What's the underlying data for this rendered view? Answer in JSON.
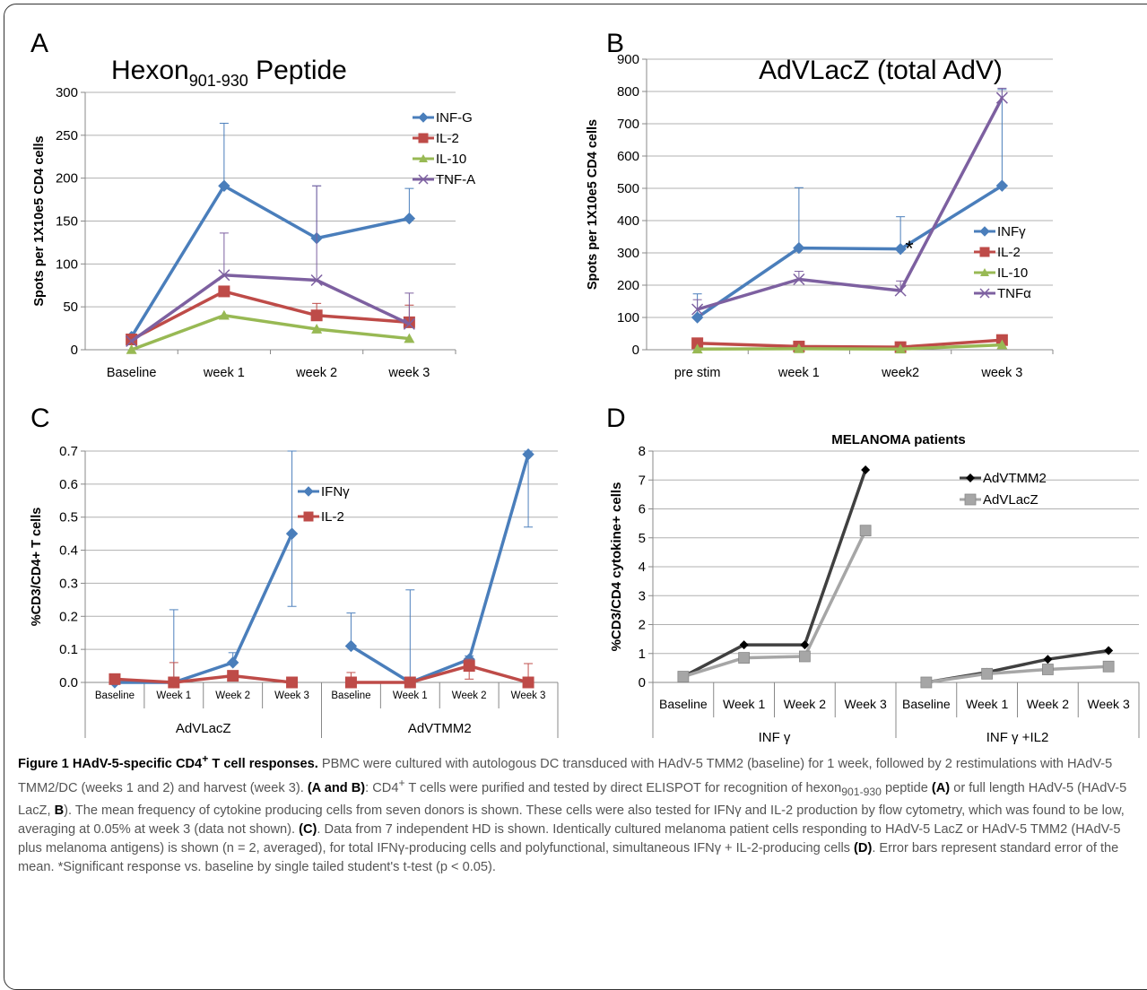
{
  "colors": {
    "blue": "#4a7ebb",
    "red": "#be4b48",
    "green": "#98b954",
    "purple": "#7d60a0",
    "dark": "#404040",
    "gray": "#a6a6a6",
    "err_blue": "#4f81bd",
    "err_red": "#c0504d"
  },
  "chart_data": [
    {
      "panel_label": "A",
      "type": "line",
      "title": "Hexon901-930 Peptide",
      "title_main": "Hexon",
      "title_sub": "901-930",
      "title_rest": " Peptide",
      "ylabel": "Spots per 1X10e5 CD4 cells",
      "xlabel": "",
      "ylim": [
        0,
        300
      ],
      "yticks": [
        "0",
        "50",
        "100",
        "150",
        "200",
        "250",
        "300"
      ],
      "categories": [
        "Baseline",
        "week 1",
        "week 2",
        "week 3"
      ],
      "grid": true,
      "legend_position": "top-right",
      "series": [
        {
          "name": "INF-G",
          "marker": "diamond",
          "values": [
            15,
            191,
            130,
            153
          ],
          "err": [
            0,
            73,
            61,
            35
          ]
        },
        {
          "name": "IL-2",
          "marker": "square",
          "values": [
            12,
            68,
            40,
            32
          ],
          "err": [
            0,
            0,
            14,
            20
          ]
        },
        {
          "name": "IL-10",
          "marker": "triangle",
          "values": [
            0,
            40,
            24,
            13
          ],
          "err": [
            0,
            0,
            0,
            0
          ]
        },
        {
          "name": "TNF-A",
          "marker": "x",
          "values": [
            10,
            87,
            81,
            30
          ],
          "err": [
            0,
            49,
            110,
            36
          ]
        }
      ]
    },
    {
      "panel_label": "B",
      "type": "line",
      "title": "AdVLacZ (total AdV)",
      "ylabel": "Spots per 1X10e5 CD4 cells",
      "xlabel": "",
      "ylim": [
        0,
        900
      ],
      "yticks": [
        "0",
        "100",
        "200",
        "300",
        "400",
        "500",
        "600",
        "700",
        "800",
        "900"
      ],
      "categories": [
        "pre stim",
        "week 1",
        "week2",
        "week 3"
      ],
      "grid": true,
      "legend_position": "center-right",
      "annotation": "*",
      "series": [
        {
          "name": "INFγ",
          "marker": "diamond",
          "values": [
            100,
            315,
            312,
            508
          ],
          "err": [
            73,
            187,
            100,
            298
          ]
        },
        {
          "name": "IL-2",
          "marker": "square",
          "values": [
            20,
            10,
            8,
            30
          ],
          "err": [
            0,
            0,
            0,
            0
          ]
        },
        {
          "name": "IL-10",
          "marker": "triangle",
          "values": [
            2,
            3,
            2,
            15
          ],
          "err": [
            0,
            0,
            0,
            0
          ]
        },
        {
          "name": "TNFα",
          "marker": "x",
          "values": [
            125,
            218,
            183,
            780
          ],
          "err": [
            30,
            25,
            30,
            30
          ]
        }
      ]
    },
    {
      "panel_label": "C",
      "type": "line",
      "title": "",
      "ylabel": "%CD3/CD4+ T cells",
      "xlabel": "",
      "ylim": [
        0,
        0.7
      ],
      "yticks": [
        "0.0",
        "0.1",
        "0.2",
        "0.3",
        "0.4",
        "0.5",
        "0.6",
        "0.7"
      ],
      "categories": [
        "Baseline",
        "Week 1",
        "Week 2",
        "Week 3",
        "Baseline",
        "Week 1",
        "Week 2",
        "Week 3"
      ],
      "groups": [
        "AdVLacZ",
        "AdVTMM2"
      ],
      "grid": true,
      "legend_position": "top-center",
      "series": [
        {
          "name": "IFNγ",
          "marker": "diamond",
          "values": [
            0.0,
            0.0,
            0.06,
            0.45,
            0.11,
            0.0,
            0.07,
            0.69
          ],
          "err_up": [
            0,
            0.22,
            0.09,
            0.7,
            0.21,
            0.28,
            0.08,
            0.7
          ],
          "err_down": [
            0,
            0,
            0,
            0.23,
            0,
            0,
            0,
            0.47
          ]
        },
        {
          "name": "IL-2",
          "marker": "square",
          "values": [
            0.01,
            0.0,
            0.02,
            0.0,
            0.0,
            0.0,
            0.05,
            0.0
          ],
          "err_up": [
            0,
            0.06,
            0,
            0,
            0.03,
            0,
            0.07,
            0.057
          ],
          "err_down": [
            0,
            0,
            0,
            0,
            0,
            0,
            0.01,
            0
          ]
        }
      ]
    },
    {
      "panel_label": "D",
      "type": "line",
      "title": "MELANOMA patients",
      "ylabel": "%CD3/CD4 cytokine+ cells",
      "xlabel": "",
      "ylim": [
        0,
        8
      ],
      "yticks": [
        "0",
        "1",
        "2",
        "3",
        "4",
        "5",
        "6",
        "7",
        "8"
      ],
      "categories": [
        "Baseline",
        "Week 1",
        "Week 2",
        "Week 3",
        "Baseline",
        "Week 1",
        "Week 2",
        "Week 3"
      ],
      "groups": [
        "INF γ",
        "INF γ +IL2"
      ],
      "grid": true,
      "legend_position": "top-right",
      "series": [
        {
          "name": "AdVTMM2",
          "marker": "diamond",
          "values": [
            0.2,
            1.3,
            1.3,
            7.35,
            0.0,
            0.35,
            0.8,
            1.1
          ]
        },
        {
          "name": "AdVLacZ",
          "marker": "square",
          "values": [
            0.2,
            0.85,
            0.9,
            5.25,
            0.0,
            0.3,
            0.45,
            0.55
          ]
        }
      ]
    }
  ],
  "caption": {
    "title": "Figure 1 HAdV-5-specific CD4",
    "title_sup": "+",
    "title_end": " T cell responses.",
    "s1": " PBMC were cultured with autologous DC transduced with HAdV-5 TMM2 (baseline) for 1 week, followed by 2 restimulations with HAdV-5 TMM2/DC (weeks 1 and 2) and harvest (week 3). ",
    "s2_bold": "(A and B)",
    "s3": ": CD4",
    "s3_sup": "+",
    "s4": " T cells were purified and tested by direct ELISPOT for recognition of hexon",
    "s4_sub": "901-930",
    "s5": " peptide ",
    "s5_bold": "(A)",
    "s6": " or full length HAdV-5 (HAdV-5 LacZ, ",
    "s6_bold": "B",
    "s7": "). The mean frequency of cytokine producing cells from seven donors is shown. These cells were also tested for IFNγ and IL-2 production by flow cytometry, which was found to be low, averaging at 0.05% at week 3 (data not shown). ",
    "s7_bold": "(C)",
    "s8": ". Data from 7 independent HD is shown. Identically cultured melanoma patient cells responding to HAdV-5 LacZ or HAdV-5 TMM2 (HAdV-5 plus melanoma antigens) is shown (n = 2, averaged), for total IFNγ-producing cells and polyfunctional, simultaneous IFNγ + IL-2-producing cells ",
    "s8_bold": "(D)",
    "s9": ". Error bars represent standard error of the mean. *Significant response vs. baseline by single tailed student's t-test (p < 0.05)."
  }
}
